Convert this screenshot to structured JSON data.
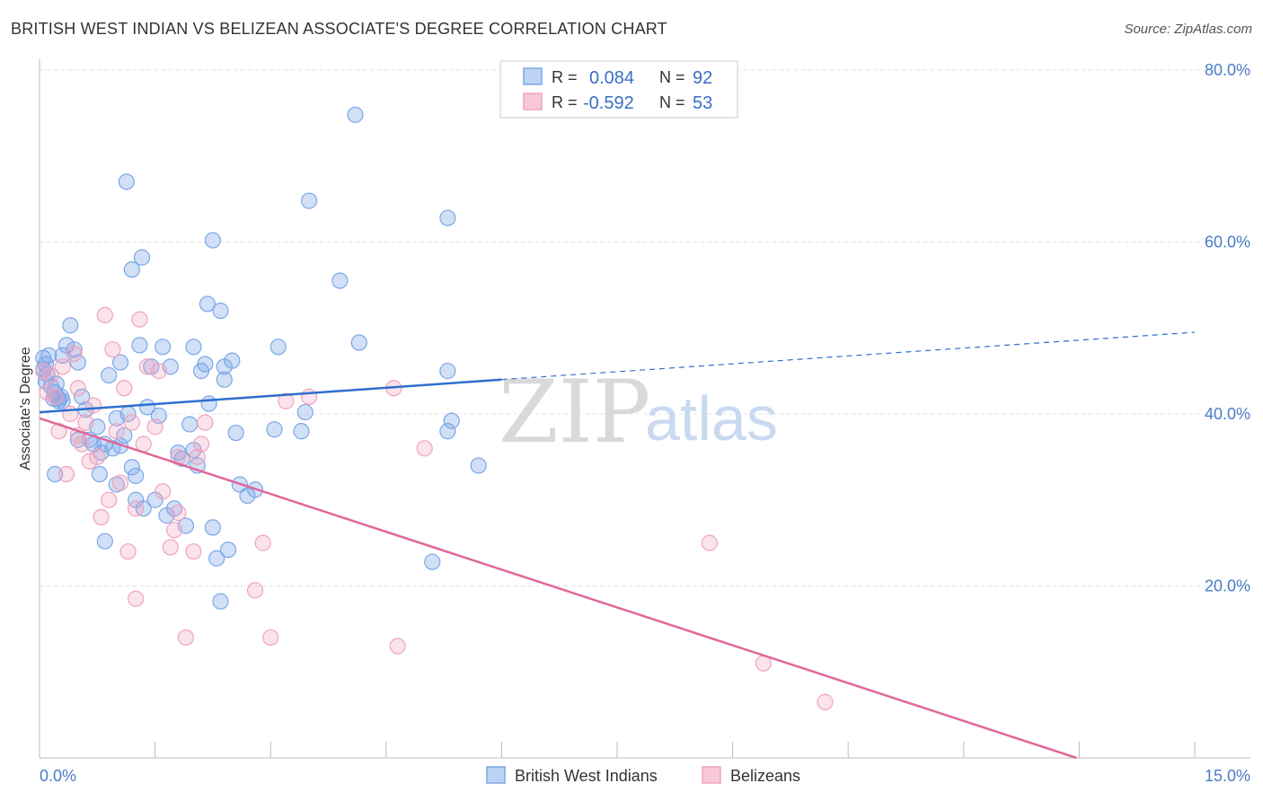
{
  "header": {
    "title": "BRITISH WEST INDIAN VS BELIZEAN ASSOCIATE'S DEGREE CORRELATION CHART",
    "source": "Source: ZipAtlas.com"
  },
  "watermark": {
    "zip": "ZIP",
    "atlas": "atlas"
  },
  "legend": {
    "rows": [
      {
        "r_label": "R =",
        "r_value": "0.084",
        "n_label": "N =",
        "n_value": "92"
      },
      {
        "r_label": "R =",
        "r_value": "-0.592",
        "n_label": "N =",
        "n_value": "53"
      }
    ]
  },
  "bottom_legend": {
    "items": [
      {
        "label": "British West Indians"
      },
      {
        "label": "Belizeans"
      }
    ]
  },
  "chart_data": {
    "type": "scatter",
    "title": "BRITISH WEST INDIAN VS BELIZEAN ASSOCIATE'S DEGREE CORRELATION CHART",
    "ylabel": "Associate's Degree",
    "xlabel": "",
    "xlim": [
      0,
      15
    ],
    "ylim": [
      0,
      80
    ],
    "x_tick_labels": [
      "0.0%",
      "15.0%"
    ],
    "y_ticks": [
      20,
      40,
      60,
      80
    ],
    "y_tick_labels": [
      "20.0%",
      "40.0%",
      "60.0%",
      "80.0%"
    ],
    "grid": true,
    "legend_position": "top-center",
    "colors": {
      "british_west_indians": "#7ba7e8",
      "belizeans": "#f0a3bd",
      "blue_line": "#2e6fd0",
      "pink_line": "#e0679a"
    },
    "series": [
      {
        "name": "British West Indians",
        "r": 0.084,
        "n": 92,
        "trend": {
          "x": [
            0.0,
            6.0
          ],
          "y": [
            40.2,
            44.0
          ],
          "dashed_extension": {
            "x": [
              6.0,
              15.0
            ],
            "y": [
              44.0,
              49.5
            ]
          }
        },
        "points": [
          [
            0.05,
            46.5
          ],
          [
            0.08,
            45.8
          ],
          [
            0.1,
            44.6
          ],
          [
            0.12,
            46.8
          ],
          [
            0.15,
            43.2
          ],
          [
            0.18,
            41.8
          ],
          [
            0.2,
            42.5
          ],
          [
            0.22,
            43.5
          ],
          [
            0.25,
            41.5
          ],
          [
            0.28,
            42.0
          ],
          [
            0.3,
            46.8
          ],
          [
            0.35,
            48.0
          ],
          [
            0.4,
            50.3
          ],
          [
            0.45,
            47.5
          ],
          [
            0.5,
            46.0
          ],
          [
            0.55,
            42.0
          ],
          [
            0.6,
            40.5
          ],
          [
            0.65,
            37.0
          ],
          [
            0.7,
            36.5
          ],
          [
            0.75,
            38.5
          ],
          [
            0.78,
            33.0
          ],
          [
            0.8,
            35.5
          ],
          [
            0.85,
            36.5
          ],
          [
            0.9,
            44.5
          ],
          [
            0.95,
            36.0
          ],
          [
            1.0,
            39.5
          ],
          [
            1.0,
            31.8
          ],
          [
            1.05,
            46.0
          ],
          [
            1.1,
            37.5
          ],
          [
            1.15,
            40.0
          ],
          [
            1.2,
            33.8
          ],
          [
            1.25,
            32.8
          ],
          [
            1.3,
            48.0
          ],
          [
            1.35,
            29.0
          ],
          [
            1.4,
            40.8
          ],
          [
            1.5,
            30.0
          ],
          [
            1.55,
            39.8
          ],
          [
            1.6,
            47.8
          ],
          [
            1.65,
            28.2
          ],
          [
            1.7,
            45.5
          ],
          [
            1.75,
            29.0
          ],
          [
            1.8,
            35.5
          ],
          [
            1.85,
            34.8
          ],
          [
            1.9,
            27.0
          ],
          [
            1.95,
            38.8
          ],
          [
            2.0,
            35.8
          ],
          [
            2.05,
            34.0
          ],
          [
            2.1,
            45.0
          ],
          [
            2.15,
            45.8
          ],
          [
            2.2,
            41.2
          ],
          [
            2.25,
            60.2
          ],
          [
            2.3,
            23.2
          ],
          [
            2.35,
            52.0
          ],
          [
            2.4,
            45.5
          ],
          [
            2.45,
            24.2
          ],
          [
            2.5,
            46.2
          ],
          [
            2.55,
            37.8
          ],
          [
            2.6,
            31.8
          ],
          [
            2.7,
            30.5
          ],
          [
            2.8,
            31.2
          ],
          [
            1.13,
            67.0
          ],
          [
            1.2,
            56.8
          ],
          [
            1.33,
            58.2
          ],
          [
            2.18,
            52.8
          ],
          [
            2.0,
            47.8
          ],
          [
            1.45,
            45.5
          ],
          [
            2.4,
            44.0
          ],
          [
            0.25,
            41.8
          ],
          [
            0.5,
            37.0
          ],
          [
            1.05,
            36.3
          ],
          [
            3.1,
            47.8
          ],
          [
            3.05,
            38.2
          ],
          [
            3.4,
            38.0
          ],
          [
            3.45,
            40.2
          ],
          [
            3.5,
            64.8
          ],
          [
            3.9,
            55.5
          ],
          [
            4.1,
            74.8
          ],
          [
            4.15,
            48.3
          ],
          [
            5.1,
            22.8
          ],
          [
            5.3,
            38.0
          ],
          [
            5.35,
            39.2
          ],
          [
            5.3,
            45.0
          ],
          [
            5.3,
            62.8
          ],
          [
            5.7,
            34.0
          ],
          [
            0.05,
            45.2
          ],
          [
            0.08,
            43.8
          ],
          [
            0.3,
            41.5
          ],
          [
            1.25,
            30.0
          ],
          [
            0.2,
            33.0
          ],
          [
            2.35,
            18.2
          ],
          [
            0.85,
            25.2
          ],
          [
            2.25,
            26.8
          ]
        ]
      },
      {
        "name": "Belizeans",
        "r": -0.592,
        "n": 53,
        "trend": {
          "x": [
            0.0,
            15.0
          ],
          "y": [
            39.5,
            -4.5
          ]
        },
        "points": [
          [
            0.05,
            45.0
          ],
          [
            0.1,
            42.5
          ],
          [
            0.15,
            44.5
          ],
          [
            0.2,
            42.0
          ],
          [
            0.25,
            38.0
          ],
          [
            0.3,
            45.5
          ],
          [
            0.35,
            33.0
          ],
          [
            0.4,
            40.0
          ],
          [
            0.45,
            47.0
          ],
          [
            0.5,
            37.5
          ],
          [
            0.55,
            36.5
          ],
          [
            0.6,
            39.0
          ],
          [
            0.65,
            34.5
          ],
          [
            0.7,
            41.0
          ],
          [
            0.75,
            35.0
          ],
          [
            0.8,
            28.0
          ],
          [
            0.85,
            51.5
          ],
          [
            0.9,
            30.0
          ],
          [
            0.95,
            47.5
          ],
          [
            1.0,
            38.0
          ],
          [
            1.05,
            32.0
          ],
          [
            1.1,
            43.0
          ],
          [
            1.15,
            24.0
          ],
          [
            1.2,
            39.0
          ],
          [
            1.25,
            29.0
          ],
          [
            1.3,
            51.0
          ],
          [
            1.35,
            36.5
          ],
          [
            1.4,
            45.5
          ],
          [
            1.5,
            38.5
          ],
          [
            1.55,
            45.0
          ],
          [
            1.6,
            31.0
          ],
          [
            1.7,
            24.5
          ],
          [
            1.75,
            26.5
          ],
          [
            1.8,
            35.0
          ],
          [
            1.9,
            14.0
          ],
          [
            2.0,
            24.0
          ],
          [
            2.05,
            35.0
          ],
          [
            2.1,
            36.5
          ],
          [
            2.15,
            39.0
          ],
          [
            2.9,
            25.0
          ],
          [
            3.0,
            14.0
          ],
          [
            2.8,
            19.5
          ],
          [
            3.2,
            41.5
          ],
          [
            3.5,
            42.0
          ],
          [
            4.6,
            43.0
          ],
          [
            4.65,
            13.0
          ],
          [
            5.0,
            36.0
          ],
          [
            8.7,
            25.0
          ],
          [
            9.4,
            11.0
          ],
          [
            10.2,
            6.5
          ],
          [
            1.25,
            18.5
          ],
          [
            0.5,
            43.0
          ],
          [
            1.8,
            28.5
          ]
        ]
      }
    ]
  }
}
